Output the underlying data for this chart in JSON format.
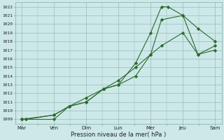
{
  "background_color": "#cce8e8",
  "grid_color": "#99bbbb",
  "line_color": "#2d6a2d",
  "x_labels": [
    "Mar",
    "Ven",
    "Dim",
    "Lun",
    "Mer",
    "Jeu",
    "Sam"
  ],
  "x_positions": [
    0,
    1.5,
    3,
    4.5,
    6,
    7.5,
    9
  ],
  "xlabel": "Pression niveau de la mer( hPa )",
  "ylim": [
    1008.5,
    1022.5
  ],
  "yticks": [
    1009,
    1010,
    1011,
    1012,
    1013,
    1014,
    1015,
    1016,
    1017,
    1018,
    1019,
    1020,
    1021,
    1022
  ],
  "line1_x": [
    0,
    0.2,
    1.5,
    2.2,
    3,
    3.8,
    4.5,
    5.3,
    6,
    6.5,
    6.8,
    7.5,
    8.2,
    9
  ],
  "line1_y": [
    1009,
    1009,
    1009,
    1010.5,
    1011,
    1012.5,
    1013,
    1015.5,
    1019,
    1022,
    1022,
    1021,
    1019.5,
    1018
  ],
  "line2_x": [
    0,
    0.2,
    1.5,
    2.2,
    3,
    3.8,
    4.5,
    5.3,
    6,
    6.5,
    7.5,
    8.2,
    9
  ],
  "line2_y": [
    1009,
    1009,
    1009.5,
    1010.5,
    1011,
    1012.5,
    1013,
    1014,
    1016.5,
    1020.5,
    1021,
    1016.5,
    1017
  ],
  "line3_x": [
    0,
    1.5,
    2.2,
    3,
    3.8,
    4.5,
    5.3,
    6,
    6.5,
    7.5,
    8.2,
    9
  ],
  "line3_y": [
    1009,
    1009.5,
    1010.5,
    1011.5,
    1012.5,
    1013.5,
    1015,
    1016.5,
    1017.5,
    1019,
    1016.5,
    1017.5
  ]
}
